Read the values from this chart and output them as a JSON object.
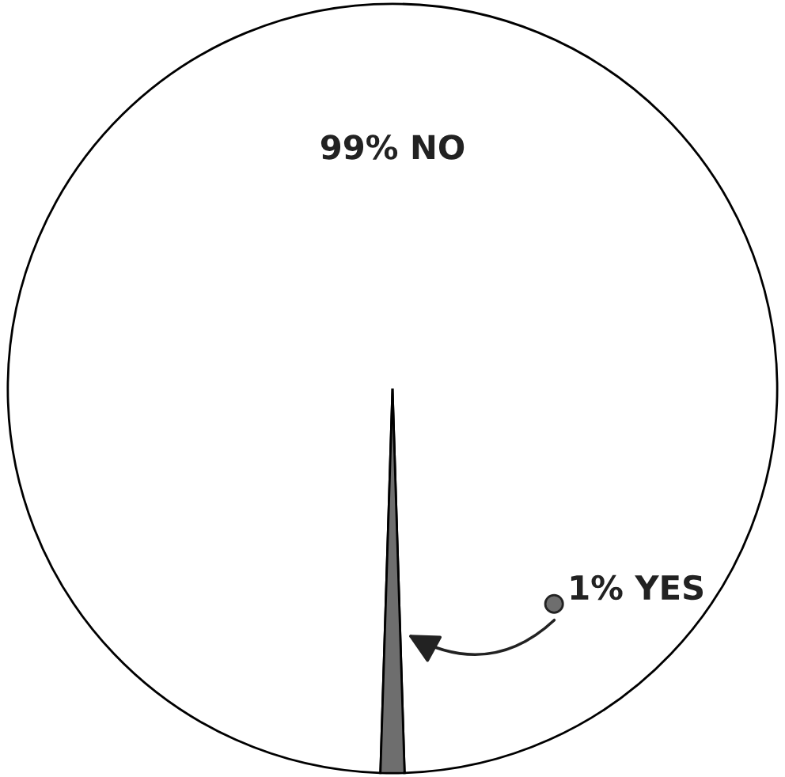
{
  "chart_data": {
    "type": "pie",
    "categories": [
      "NO",
      "YES"
    ],
    "values": [
      99,
      1
    ],
    "value_labels": [
      "99%",
      "1%"
    ],
    "colors": [
      "#ffffff",
      "#6e6e6e"
    ]
  }
}
